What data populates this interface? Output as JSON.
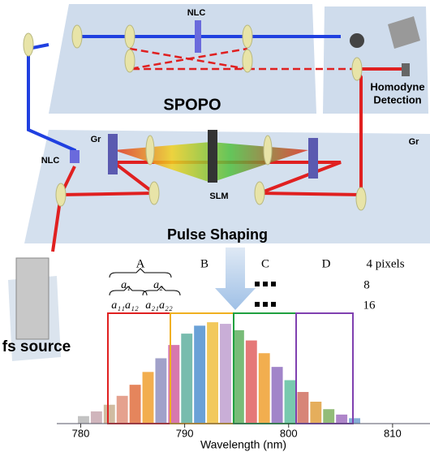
{
  "labels": {
    "nlc_top": "NLC",
    "spopo": "SPOPO",
    "homodyne": [
      "Homodyne",
      "Detection"
    ],
    "gr_left": "Gr",
    "gr_right": "Gr",
    "nlc_left": "NLC",
    "slm": "SLM",
    "pulse_shaping": "Pulse Shaping",
    "fs_source": "fs source"
  },
  "pixel_table": {
    "columns": [
      "A",
      "B",
      "C",
      "D"
    ],
    "rows": [
      "4 pixels",
      "8",
      "16"
    ],
    "level1": [
      "a₁",
      "a₂"
    ],
    "level2": [
      "a₁₁a₁₂",
      "a₂₁a₂₂"
    ]
  },
  "spectrum": {
    "xlabel": "Wavelength (nm)",
    "xlim": [
      777.7,
      813.6
    ],
    "xticks": [
      780,
      790,
      800,
      810
    ]
  }
}
